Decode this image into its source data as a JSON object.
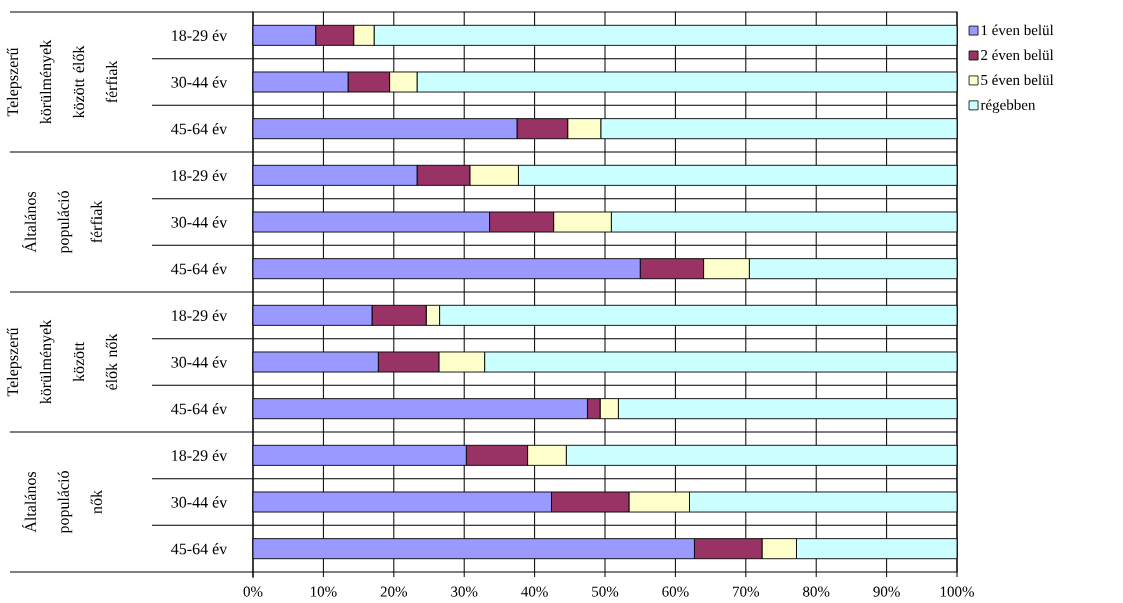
{
  "chart_data": {
    "type": "bar",
    "orientation": "horizontal",
    "stacked": true,
    "categories": [
      "18-29 év",
      "30-44 év",
      "45-64 év",
      "18-29 év",
      "30-44 év",
      "45-64 év",
      "18-29 év",
      "30-44 év",
      "45-64 év",
      "18-29 év",
      "30-44 év",
      "45-64 év"
    ],
    "annotations": [
      "Telepszerű körülmények között élők férfiak",
      "Általános populáció férfiak",
      "Telepszerű körülmények között élők nők",
      "Általános populáció nők"
    ],
    "series": [
      {
        "name": "1 éven belül",
        "color": "#9999ff",
        "values": [
          8.9,
          13.5,
          37.5,
          23.3,
          33.6,
          55.0,
          16.9,
          17.8,
          47.5,
          30.3,
          42.4,
          62.7
        ]
      },
      {
        "name": "2 éven belül",
        "color": "#993366",
        "values": [
          5.4,
          5.9,
          7.2,
          7.5,
          9.1,
          9.0,
          7.7,
          8.6,
          1.8,
          8.7,
          11.0,
          9.6
        ]
      },
      {
        "name": "5 éven belül",
        "color": "#ffffcc",
        "values": [
          2.9,
          3.9,
          4.7,
          6.9,
          8.2,
          6.5,
          1.9,
          6.5,
          2.6,
          5.5,
          8.6,
          4.9
        ]
      },
      {
        "name": "régebben",
        "color": "#ccffff",
        "values": [
          82.8,
          76.7,
          50.6,
          62.3,
          49.1,
          29.5,
          73.5,
          67.1,
          48.1,
          55.5,
          38.0,
          22.8
        ]
      }
    ],
    "xlim": [
      0,
      100
    ],
    "xticks": [
      {
        "value": 0,
        "label": "0%"
      },
      {
        "value": 10,
        "label": "10%"
      },
      {
        "value": 20,
        "label": "20%"
      },
      {
        "value": 30,
        "label": "30%"
      },
      {
        "value": 40,
        "label": "40%"
      },
      {
        "value": 50,
        "label": "50%"
      },
      {
        "value": 60,
        "label": "60%"
      },
      {
        "value": 70,
        "label": "70%"
      },
      {
        "value": 80,
        "label": "80%"
      },
      {
        "value": 90,
        "label": "90%"
      },
      {
        "value": 100,
        "label": "100%"
      }
    ],
    "grid": true,
    "legend": "right"
  }
}
